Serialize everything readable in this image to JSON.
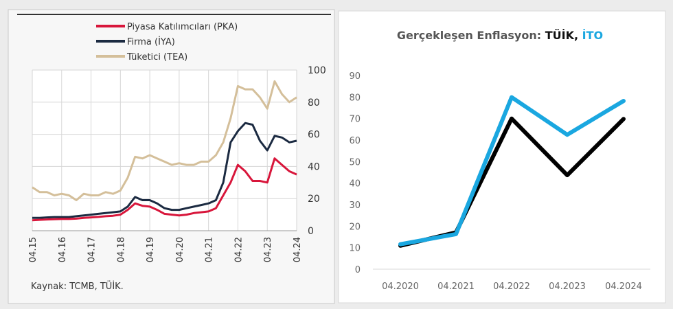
{
  "chart_data": [
    {
      "type": "line",
      "title": "",
      "legend_position": "top",
      "source": "Kaynak: TCMB, TÜİK.",
      "x_tick_labels": [
        "04.15",
        "04.16",
        "04.17",
        "04.18",
        "04.19",
        "04.20",
        "04.21",
        "04.22",
        "04.23",
        "04.24"
      ],
      "x_range": [
        2015.25,
        2024.25
      ],
      "x_step": 0.25,
      "y_ticks": [
        0,
        20,
        40,
        60,
        80,
        100
      ],
      "ylim": [
        0,
        100
      ],
      "y_axis_side": "right",
      "grid": true,
      "series": [
        {
          "name": "Piyasa Katılımcıları (PKA)",
          "color": "#d8163b",
          "values": [
            6.5,
            6.8,
            7,
            7.2,
            7.3,
            7.3,
            7.5,
            8,
            8.3,
            8.6,
            9,
            9.3,
            10,
            13,
            17,
            15.5,
            15,
            13,
            10.5,
            10,
            9.5,
            10,
            11,
            11.5,
            12,
            14,
            22,
            30,
            41,
            37,
            31,
            31,
            30,
            45,
            41,
            37,
            35
          ]
        },
        {
          "name": "Firma (İYA)",
          "color": "#1b2a41",
          "values": [
            8,
            8,
            8.3,
            8.5,
            8.5,
            8.5,
            9,
            9.5,
            10,
            10.5,
            11,
            11.5,
            12,
            15,
            21,
            19,
            19,
            17,
            14,
            13,
            13,
            14,
            15,
            16,
            17,
            19,
            30,
            55,
            62,
            67,
            66,
            56,
            50,
            59,
            58,
            55,
            56
          ]
        },
        {
          "name": "Tüketici (TEA)",
          "color": "#d4bf9a",
          "values": [
            27,
            24,
            24,
            22,
            23,
            22,
            19,
            23,
            22,
            22,
            24,
            23,
            25,
            33,
            46,
            45,
            47,
            45,
            43,
            41,
            42,
            41,
            41,
            43,
            43,
            47,
            55,
            70,
            90,
            88,
            88,
            83,
            76,
            93,
            85,
            80,
            83
          ]
        }
      ]
    },
    {
      "type": "line",
      "title_parts": [
        "Gerçekleşen Enflasyon: ",
        "TÜİK",
        ", ",
        "İTO"
      ],
      "categories": [
        "04.2020",
        "04.2021",
        "04.2022",
        "04.2023",
        "04.2024"
      ],
      "y_ticks": [
        0,
        10,
        20,
        30,
        40,
        50,
        60,
        70,
        80,
        90
      ],
      "ylim": [
        0,
        90
      ],
      "grid": false,
      "series": [
        {
          "name": "TÜİK",
          "color": "#000000",
          "values": [
            10.9,
            17.1,
            70.0,
            43.7,
            69.8
          ]
        },
        {
          "name": "İTO",
          "color": "#1aa7e0",
          "values": [
            11.6,
            16.3,
            79.9,
            62.5,
            78.2
          ]
        }
      ]
    }
  ]
}
